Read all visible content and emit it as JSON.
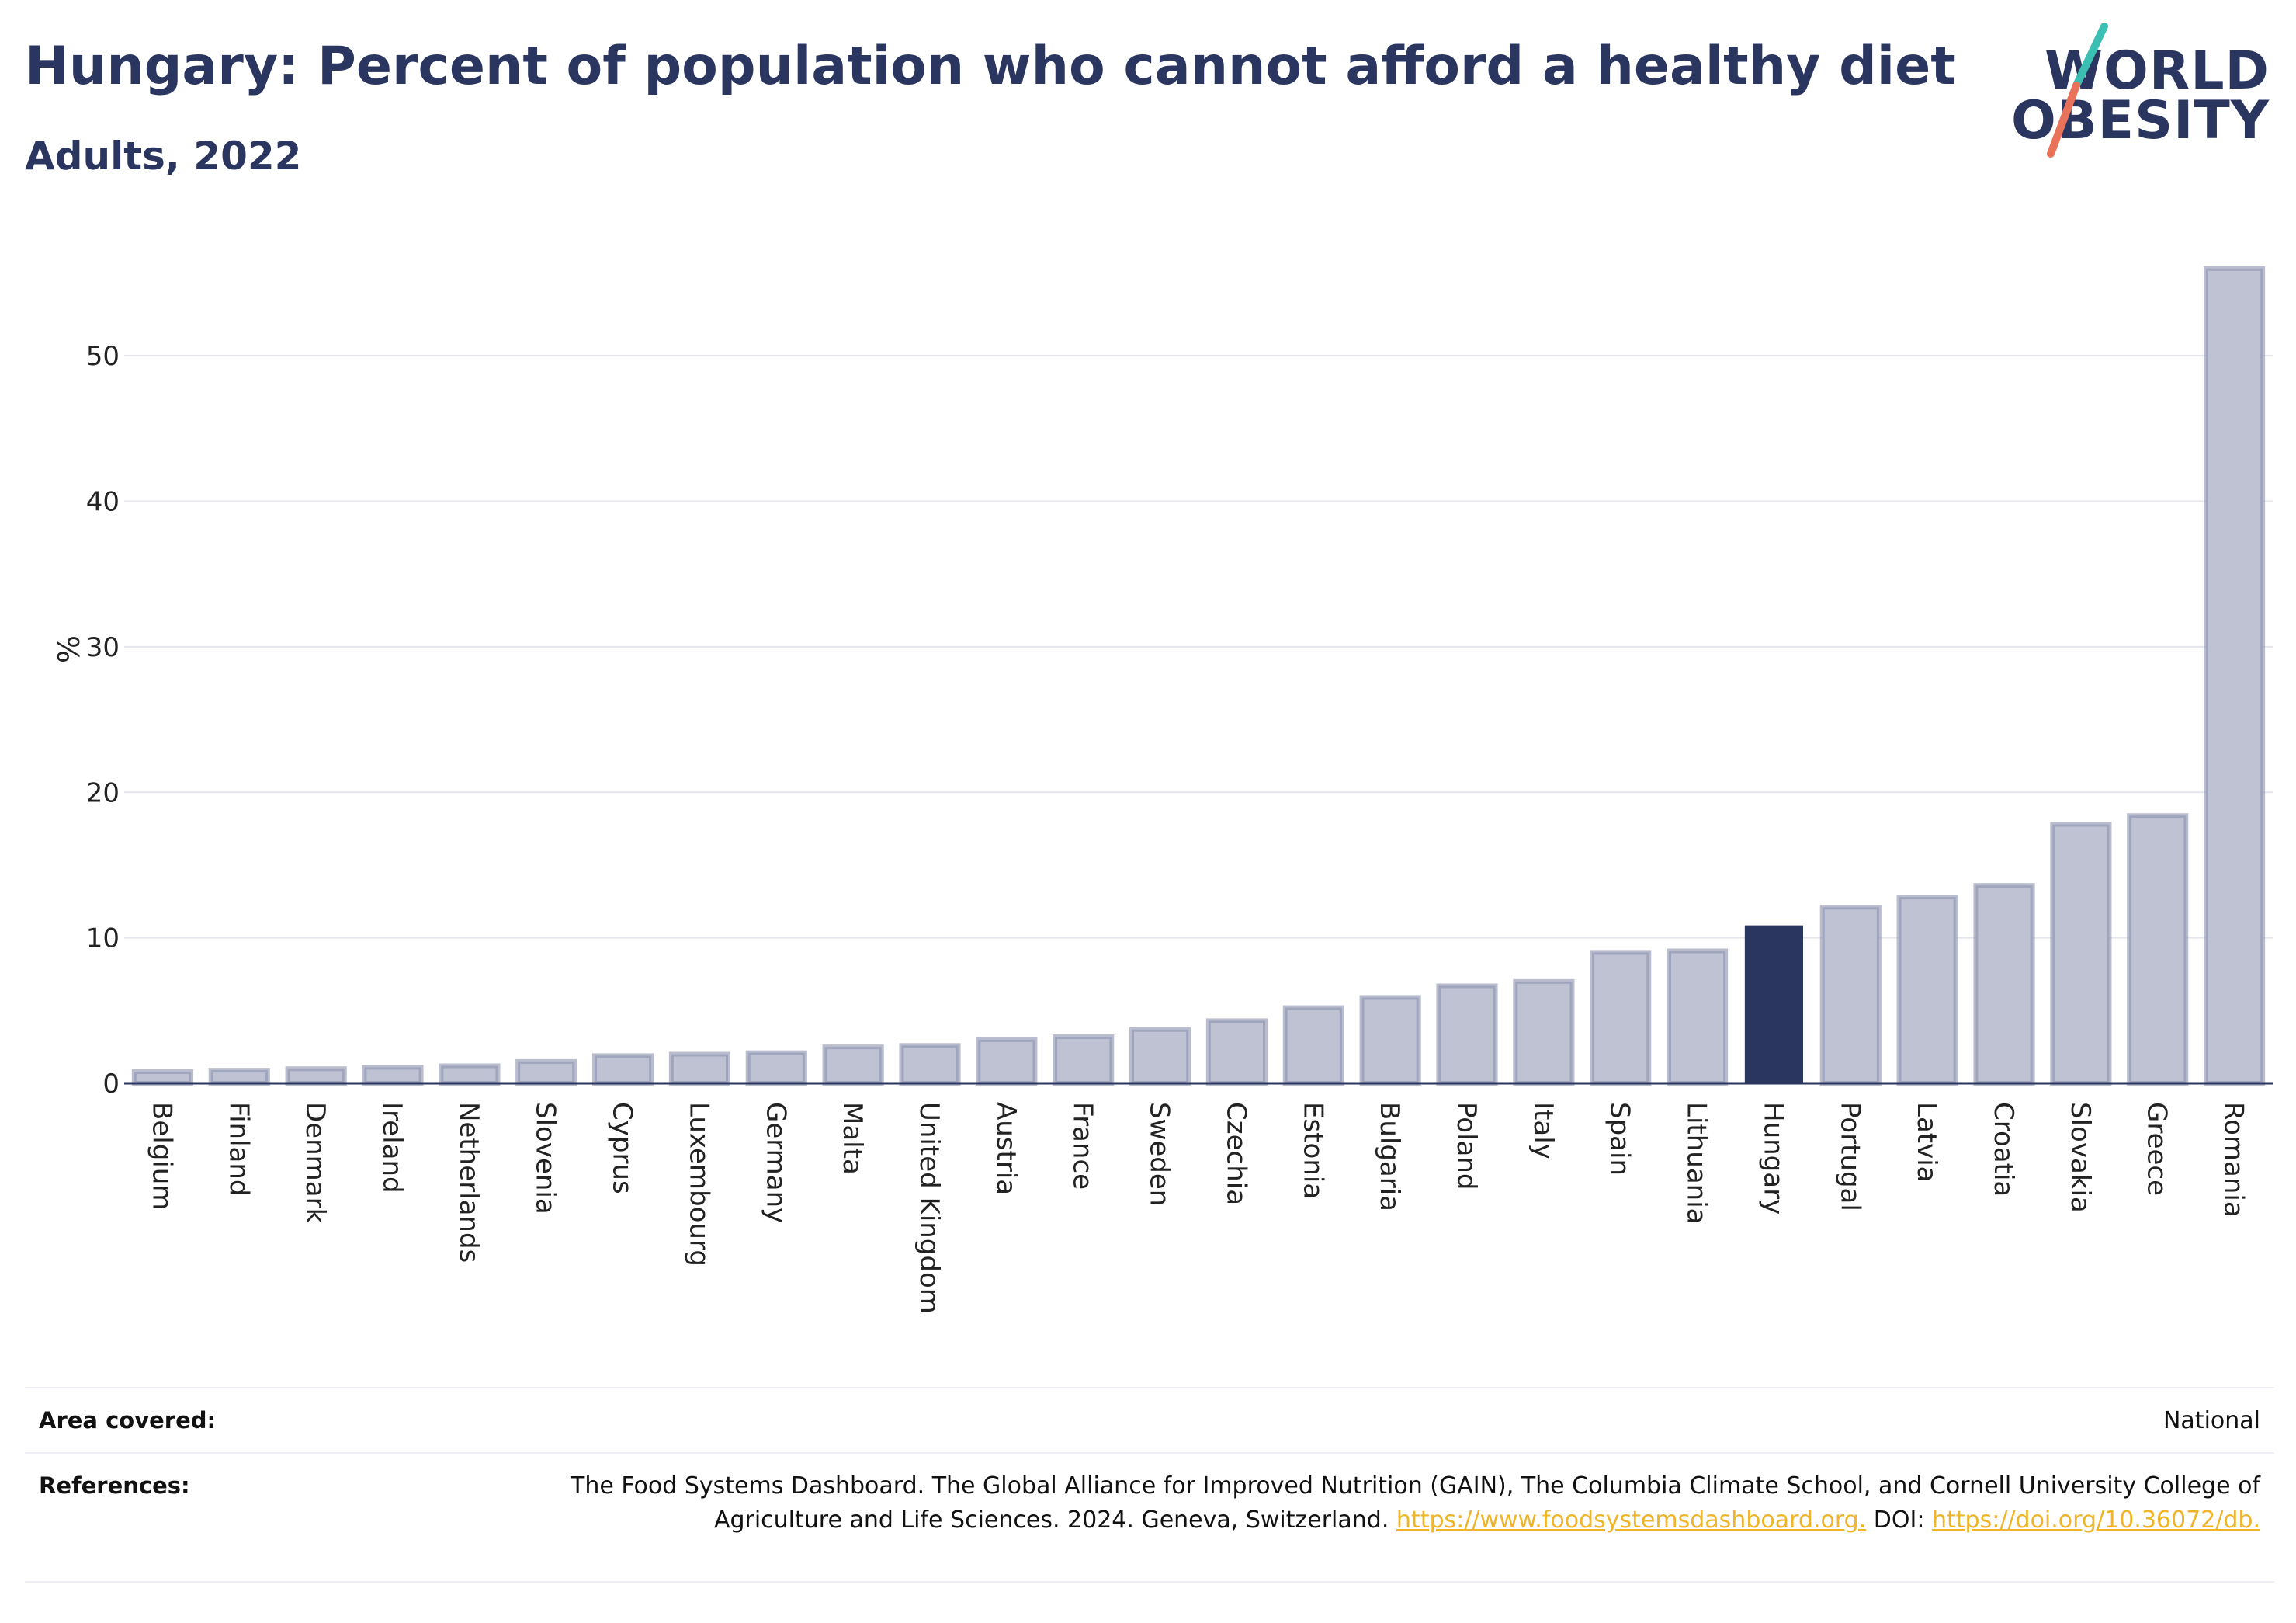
{
  "header": {
    "title": "Hungary: Percent of population who cannot afford a healthy diet",
    "subtitle": "Adults, 2022"
  },
  "logo": {
    "line1": "WORLD",
    "line2": "OBESITY",
    "accent_colors": [
      "#3bbfb2",
      "#e8735a"
    ]
  },
  "colors": {
    "bar": "#bec2d3",
    "bar_stroke": "#8a91ad",
    "highlight": "#2b3660",
    "grid": "#e4e6ee",
    "baseline": "#2b3660",
    "title": "#2b3660",
    "link": "#f0b429"
  },
  "chart_data": {
    "type": "bar",
    "title": "Hungary: Percent of population who cannot afford a healthy diet",
    "subtitle": "Adults, 2022",
    "ylabel": "%",
    "xlabel": "",
    "ylim": [
      0,
      57
    ],
    "yticks": [
      0,
      10,
      20,
      30,
      40,
      50
    ],
    "grid": true,
    "highlight": "Hungary",
    "categories": [
      "Belgium",
      "Finland",
      "Denmark",
      "Ireland",
      "Netherlands",
      "Slovenia",
      "Cyprus",
      "Luxembourg",
      "Germany",
      "Malta",
      "United Kingdom",
      "Austria",
      "France",
      "Sweden",
      "Czechia",
      "Estonia",
      "Bulgaria",
      "Poland",
      "Italy",
      "Spain",
      "Lithuania",
      "Hungary",
      "Portugal",
      "Latvia",
      "Croatia",
      "Slovakia",
      "Greece",
      "Romania"
    ],
    "values": [
      0.8,
      0.9,
      1.0,
      1.1,
      1.2,
      1.5,
      1.9,
      2.0,
      2.1,
      2.5,
      2.6,
      3.0,
      3.2,
      3.7,
      4.3,
      5.2,
      5.9,
      6.7,
      7.0,
      9.0,
      9.1,
      10.8,
      12.1,
      12.8,
      13.6,
      17.8,
      18.4,
      56.0
    ]
  },
  "footer": {
    "area_label": "Area covered:",
    "area_value": "National",
    "references_label": "References:",
    "references_text": "The Food Systems Dashboard. The Global Alliance for Improved Nutrition (GAIN), The Columbia Climate School, and Cornell University College of Agriculture and Life Sciences. 2024. Geneva, Switzerland.",
    "references_link1": "https://www.foodsystemsdashboard.org.",
    "references_doi_label": "DOI:",
    "references_link2": "https://doi.org/10.36072/db."
  }
}
